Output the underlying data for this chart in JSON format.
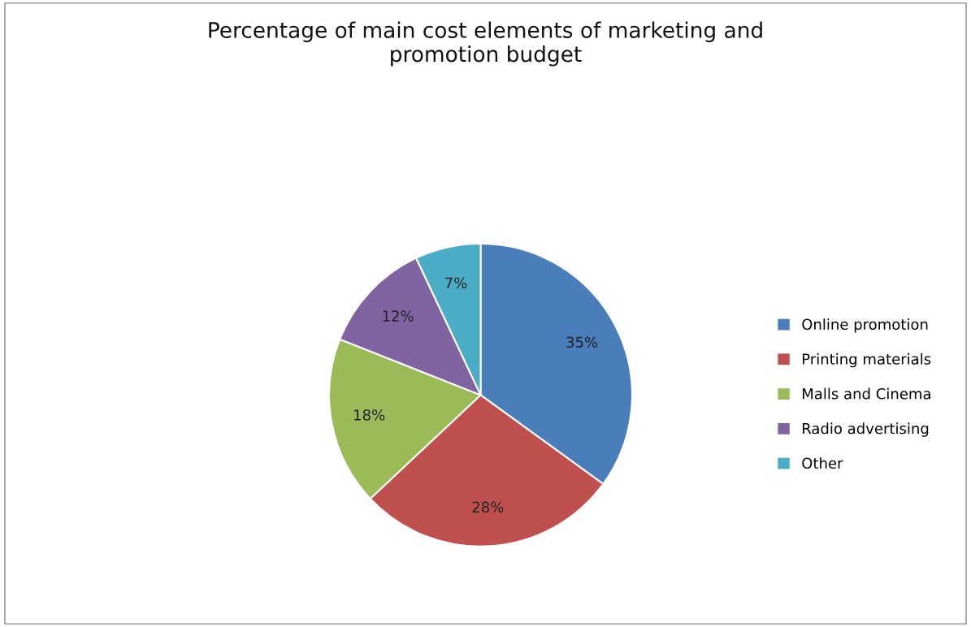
{
  "chart_data": {
    "type": "pie",
    "title": "Percentage of main cost elements of marketing and\npromotion budget",
    "categories": [
      "Online promotion",
      "Printing materials",
      "Malls and Cinema",
      "Radio advertising",
      "Other"
    ],
    "values": [
      35,
      28,
      18,
      12,
      7
    ],
    "value_labels": [
      "35%",
      "28%",
      "18%",
      "12%",
      "7%"
    ],
    "colors": [
      "#4a7ebb",
      "#c0504d",
      "#9bbb59",
      "#8064a2",
      "#4bacc6"
    ],
    "legend": "right"
  }
}
